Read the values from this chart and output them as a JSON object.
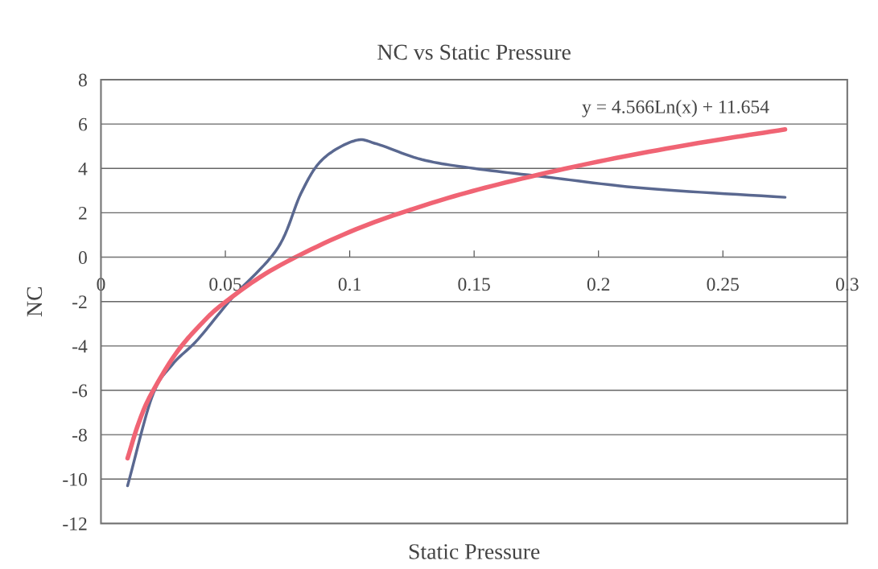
{
  "chart_data": {
    "type": "line",
    "title": "NC vs Static Pressure",
    "xlabel": "Static Pressure",
    "ylabel": "NC",
    "series": [
      {
        "color": "#5a6890",
        "x": [
          0.0107,
          0.0205,
          0.0286,
          0.039,
          0.053,
          0.071,
          0.0805,
          0.089,
          0.102,
          0.111,
          0.129,
          0.15,
          0.18,
          0.219,
          0.275
        ],
        "values": [
          -10.3,
          -6.3,
          -4.85,
          -3.7,
          -1.8,
          0.4,
          2.9,
          4.4,
          5.25,
          5.1,
          4.4,
          4.0,
          3.6,
          3.1,
          2.7
        ]
      },
      {
        "color": "#f06474",
        "x": [
          0.0107,
          0.015,
          0.02,
          0.03,
          0.04,
          0.05,
          0.07,
          0.1,
          0.13,
          0.16,
          0.2,
          0.24,
          0.275
        ],
        "values": [
          -9.06,
          -7.52,
          -6.21,
          -4.36,
          -3.04,
          -2.02,
          -0.49,
          1.14,
          2.34,
          3.29,
          4.31,
          5.14,
          5.76
        ]
      }
    ],
    "annotations": [
      "y = 4.566Ln(x) + 11.654"
    ],
    "xlim": [
      0,
      0.3
    ],
    "xticks": [
      0,
      0.05,
      0.1,
      0.15,
      0.2,
      0.25,
      0.3
    ],
    "ylim": [
      -12,
      8
    ],
    "yticks": [
      -12,
      -10,
      -8,
      -6,
      -4,
      -2,
      0,
      2,
      4,
      6,
      8
    ],
    "grid": "y",
    "legend": false,
    "marker": "none",
    "line_style": "solid"
  }
}
